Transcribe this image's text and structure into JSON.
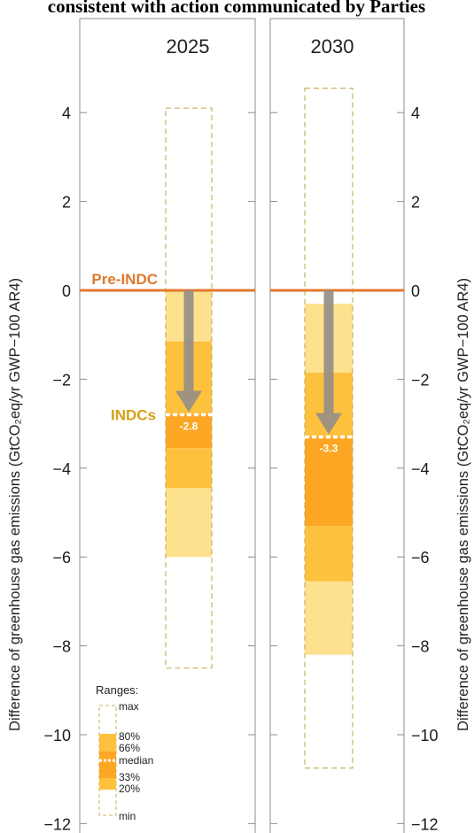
{
  "title": "consistent with action communicated by Parties",
  "chart_data": {
    "type": "bar",
    "panels": [
      {
        "name": "2025",
        "max": 4.1,
        "p80": 0.0,
        "p66": -1.15,
        "median": -2.8,
        "p33": -3.55,
        "p20": -4.45,
        "p20_low": -6.0,
        "min": -8.5,
        "median_label": "-2.8"
      },
      {
        "name": "2030",
        "max": 4.55,
        "p80": -0.3,
        "p66": -1.85,
        "median": -3.3,
        "p33": -5.3,
        "p20": -6.55,
        "p20_low": -8.2,
        "min": -10.75,
        "median_label": "-3.3"
      }
    ],
    "reference_line": {
      "label": "Pre-INDC",
      "value": 0
    },
    "arrow_label": "INDCs",
    "ylabel_left": "Difference of greenhouse gas emissions (GtCO₂eq/yr GWP−100 AR4)",
    "ylabel_right": "Difference of greenhouse gas emissions (GtCO₂eq/yr GWP−100 AR4)",
    "ylim": [
      -12,
      5.8
    ],
    "yticks": [
      4,
      2,
      0,
      -2,
      -4,
      -6,
      -8,
      -10,
      -12
    ],
    "ytick_labels": [
      "4",
      "2",
      "0",
      "−2",
      "−4",
      "−6",
      "−8",
      "−10",
      "−12"
    ],
    "legend": {
      "title": "Ranges:",
      "items": [
        "max",
        "80%",
        "66%",
        "median",
        "33%",
        "20%",
        "min"
      ]
    },
    "colors": {
      "light": "#fde18e",
      "mid": "#fdc13e",
      "dark": "#fca623",
      "pre_line": "#e3782c",
      "arrow": "#958f86",
      "dashed": "#c8b162",
      "indc_text": "#d4a017",
      "frame": "#8c8c8c"
    }
  }
}
